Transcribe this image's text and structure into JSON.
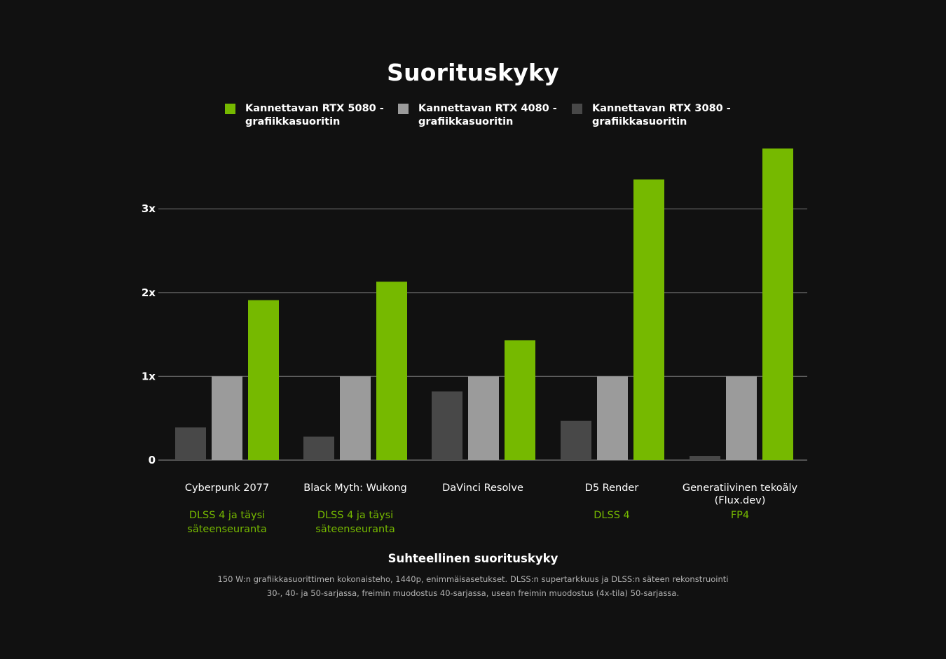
{
  "colors": {
    "background": "#111111",
    "rtx5080": "#76b900",
    "rtx4080": "#9b9b9b",
    "rtx3080": "#484848",
    "grid": "#666666",
    "subtitle_accent": "#76b900"
  },
  "chart_data": {
    "type": "bar",
    "title": "Suorituskyky",
    "xlabel": "Suhteellinen suorituskyky",
    "ylabel": "",
    "ylim": [
      0,
      3.75
    ],
    "yticks": [
      {
        "value": 0,
        "label": "0"
      },
      {
        "value": 1,
        "label": "1x"
      },
      {
        "value": 2,
        "label": "2x"
      },
      {
        "value": 3,
        "label": "3x"
      }
    ],
    "grid": true,
    "legend_position": "top-center",
    "categories": [
      {
        "name": "Cyberpunk 2077",
        "sub": "DLSS 4 ja täysi\nsäteenseuranta"
      },
      {
        "name": "Black Myth: Wukong",
        "sub": "DLSS 4 ja täysi\nsäteenseuranta"
      },
      {
        "name": "DaVinci Resolve",
        "sub": ""
      },
      {
        "name": "D5 Render",
        "sub": "DLSS 4"
      },
      {
        "name": "Generatiivinen tekoäly\n(Flux.dev)",
        "sub": "FP4"
      }
    ],
    "series": [
      {
        "name": "Kannettavan RTX 3080 -\ngrafiikkasuoritin",
        "color": "#484848",
        "values": [
          0.39,
          0.28,
          0.82,
          0.47,
          0.05
        ]
      },
      {
        "name": "Kannettavan RTX 4080 -\ngrafiikkasuoritin",
        "color": "#9b9b9b",
        "values": [
          1.0,
          1.0,
          1.0,
          1.0,
          1.0
        ]
      },
      {
        "name": "Kannettavan RTX 5080 -\ngrafiikkasuoritin",
        "color": "#76b900",
        "values": [
          1.91,
          2.13,
          1.43,
          3.35,
          3.72
        ]
      }
    ]
  },
  "legend": [
    {
      "label": "Kannettavan RTX 5080 -\ngrafiikkasuoritin",
      "color": "#76b900"
    },
    {
      "label": "Kannettavan RTX 4080 -\ngrafiikkasuoritin",
      "color": "#9b9b9b"
    },
    {
      "label": "Kannettavan RTX 3080 -\ngrafiikkasuoritin",
      "color": "#484848"
    }
  ],
  "footnote": "150 W:n grafiikkasuorittimen kokonaisteho, 1440p, enimmäisasetukset. DLSS:n supertarkkuus ja DLSS:n säteen rekonstruointi 30-, 40- ja 50-sarjassa, freimin muodostus 40-sarjassa, usean freimin muodostus (4x-tila) 50-sarjassa."
}
